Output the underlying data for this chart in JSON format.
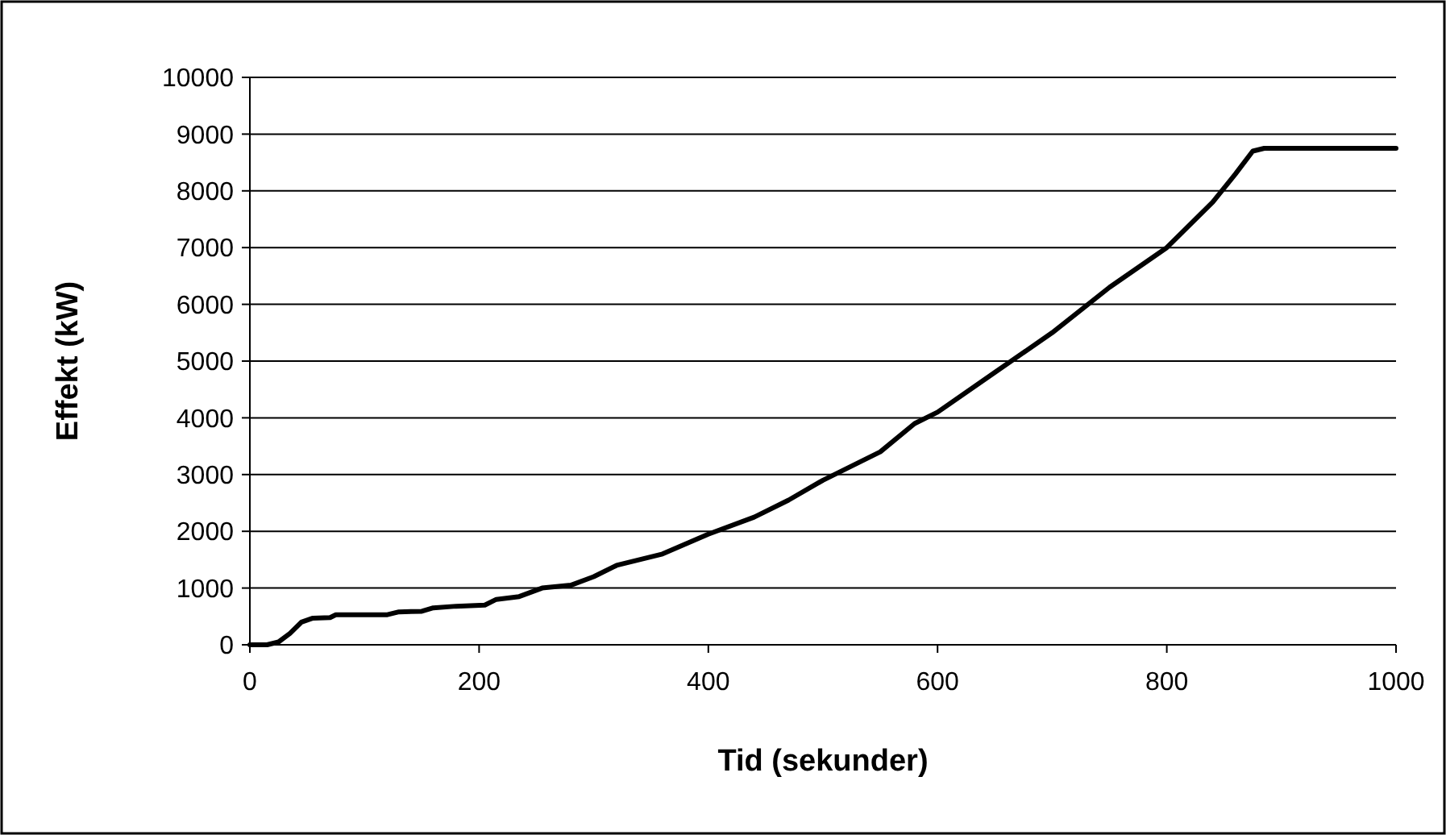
{
  "chart_data": {
    "type": "line",
    "xlabel": "Tid (sekunder)",
    "ylabel": "Effekt (kW)",
    "x": [
      0,
      15,
      25,
      35,
      45,
      55,
      70,
      75,
      120,
      130,
      150,
      160,
      180,
      205,
      215,
      235,
      255,
      280,
      300,
      320,
      360,
      400,
      440,
      470,
      500,
      550,
      580,
      600,
      650,
      700,
      750,
      800,
      840,
      860,
      875,
      885,
      1000
    ],
    "series": [
      {
        "color": "#000000",
        "values": [
          0,
          0,
          50,
          200,
          400,
          470,
          480,
          530,
          530,
          580,
          590,
          650,
          680,
          700,
          800,
          850,
          1000,
          1050,
          1200,
          1400,
          1600,
          1950,
          2250,
          2550,
          2900,
          3400,
          3900,
          4100,
          4800,
          5500,
          6300,
          7000,
          7800,
          8300,
          8700,
          8750,
          8750
        ]
      }
    ],
    "xlim": [
      0,
      1000
    ],
    "xticks": [
      0,
      200,
      400,
      600,
      800,
      1000
    ],
    "ylim": [
      0,
      10000
    ],
    "yticks": [
      0,
      1000,
      2000,
      3000,
      4000,
      5000,
      6000,
      7000,
      8000,
      9000,
      10000
    ],
    "grid": "y",
    "marker": "none",
    "line_style": "solid"
  }
}
